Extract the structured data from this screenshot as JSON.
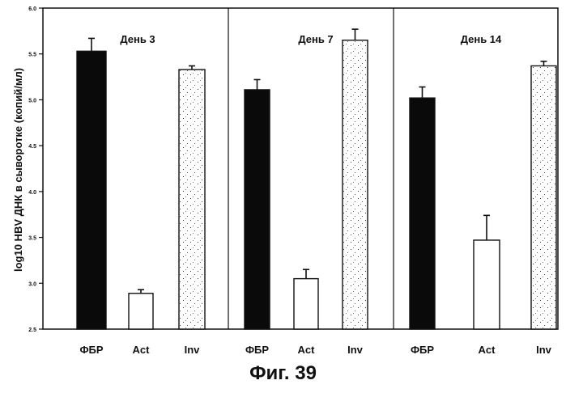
{
  "figure": {
    "caption": "Фиг. 39"
  },
  "chart_data": {
    "type": "bar",
    "ylabel": "log10 HBV ДНК в сыворотке (копий/мл)",
    "xlabel": "",
    "ylim": [
      2.5,
      6.0
    ],
    "yticks": [
      2.5,
      3.0,
      3.5,
      4.0,
      4.5,
      5.0,
      5.5,
      6.0
    ],
    "ytick_labels": [
      "2.5",
      "3.0",
      "3.5",
      "4.0",
      "4.5",
      "5.0",
      "5.5",
      "6.0"
    ],
    "grid": false,
    "panels": [
      {
        "title": "День 3",
        "categories": [
          "ФБР",
          "Act",
          "Inv"
        ],
        "values": [
          5.53,
          2.89,
          5.33
        ],
        "errors": [
          0.14,
          0.04,
          0.04
        ]
      },
      {
        "title": "День 7",
        "categories": [
          "ФБР",
          "Act",
          "Inv"
        ],
        "values": [
          5.11,
          3.05,
          5.65
        ],
        "errors": [
          0.11,
          0.1,
          0.12
        ]
      },
      {
        "title": "День 14",
        "categories": [
          "ФБР",
          "Act",
          "Inv"
        ],
        "values": [
          5.02,
          3.47,
          5.37
        ],
        "errors": [
          0.12,
          0.27,
          0.05
        ]
      }
    ],
    "bar_styles": {
      "ФБР": "solid-black",
      "Act": "white",
      "Inv": "speckled"
    },
    "colors": {
      "ink": "#111111",
      "fill_dark": "#0a0a0a",
      "fill_light": "#ffffff"
    }
  }
}
